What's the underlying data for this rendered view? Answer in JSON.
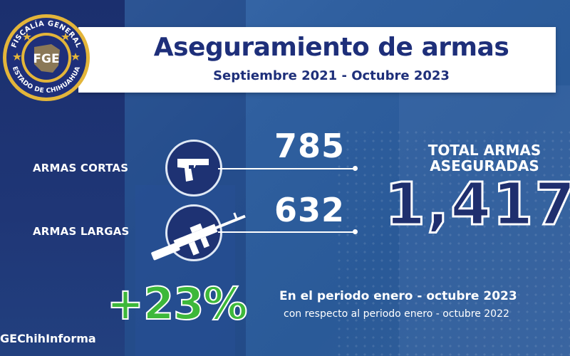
{
  "header": {
    "title": "Aseguramiento de armas",
    "subtitle": "Septiembre 2021 - Octubre 2023"
  },
  "seal": {
    "ring_text_top": "FISCALÍA GENERAL",
    "ring_text_bottom": "ESTADO DE CHIHUAHUA",
    "center_text": "FGE"
  },
  "chart_data": {
    "type": "table",
    "categories": [
      "ARMAS CORTAS",
      "ARMAS LARGAS"
    ],
    "values": [
      785,
      632
    ],
    "display_values": [
      "785",
      "632"
    ],
    "icons": [
      "handgun-icon",
      "rifle-icon"
    ],
    "total": {
      "label_line1": "TOTAL ARMAS",
      "label_line2": "ASEGURADAS",
      "value": 1417,
      "display": "1,417"
    },
    "change": {
      "value": "+23%",
      "text_main": "En el periodo enero - octubre 2023",
      "text_sub": "con respecto al periodo enero - octubre 2022"
    }
  },
  "footer": {
    "hashtag": "GEChihInforma"
  },
  "colors": {
    "navy": "#1e2f7a",
    "accent_green": "#3db83a",
    "gold": "#e3b53a"
  }
}
